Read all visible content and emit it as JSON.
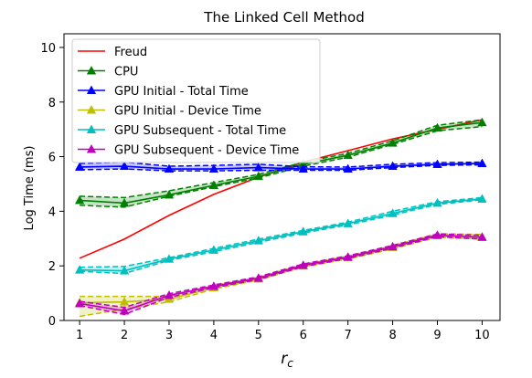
{
  "chart_data": {
    "type": "line",
    "title": "The Linked Cell Method",
    "xlabel_base": "r",
    "xlabel_sub": "c",
    "ylabel": "Log Time (ms)",
    "x": [
      1,
      2,
      3,
      4,
      5,
      6,
      7,
      8,
      9,
      10
    ],
    "xticks": [
      1,
      2,
      3,
      4,
      5,
      6,
      7,
      8,
      9,
      10
    ],
    "yticks": [
      0,
      2,
      4,
      6,
      8,
      10
    ],
    "xlim": [
      0.65,
      10.4
    ],
    "ylim": [
      0,
      10.5
    ],
    "legend_position": "upper-left",
    "series": [
      {
        "name": "Freud",
        "color": "#ff0000",
        "marker": "none",
        "values": [
          2.28,
          2.98,
          3.85,
          4.62,
          5.25,
          5.8,
          6.22,
          6.65,
          7.0,
          7.35
        ]
      },
      {
        "name": "CPU",
        "color": "#008000",
        "marker": "triangle",
        "values": [
          4.4,
          4.3,
          4.6,
          4.95,
          5.28,
          5.72,
          6.05,
          6.5,
          7.05,
          7.25
        ],
        "lower": [
          4.22,
          4.15,
          4.55,
          4.9,
          5.22,
          5.65,
          5.98,
          6.45,
          6.95,
          7.1
        ],
        "upper": [
          4.55,
          4.5,
          4.75,
          5.05,
          5.35,
          5.8,
          6.12,
          6.58,
          7.15,
          7.35
        ]
      },
      {
        "name": "GPU Initial - Total Time",
        "color": "#0000ff",
        "marker": "triangle",
        "values": [
          5.62,
          5.65,
          5.55,
          5.55,
          5.6,
          5.55,
          5.55,
          5.65,
          5.72,
          5.75
        ],
        "lower": [
          5.52,
          5.55,
          5.48,
          5.48,
          5.5,
          5.5,
          5.5,
          5.6,
          5.68,
          5.7
        ],
        "upper": [
          5.75,
          5.8,
          5.65,
          5.68,
          5.72,
          5.63,
          5.62,
          5.72,
          5.78,
          5.8
        ]
      },
      {
        "name": "GPU Initial - Device Time",
        "color": "#bfbf00",
        "marker": "triangle",
        "values": [
          0.65,
          0.68,
          0.78,
          1.2,
          1.52,
          2.0,
          2.3,
          2.68,
          3.12,
          3.05
        ],
        "lower": [
          0.15,
          0.42,
          0.68,
          1.15,
          1.48,
          1.96,
          2.25,
          2.62,
          3.05,
          2.98
        ],
        "upper": [
          0.88,
          0.88,
          0.88,
          1.28,
          1.58,
          2.06,
          2.36,
          2.74,
          3.18,
          3.15
        ]
      },
      {
        "name": "GPU Subsequent - Total Time",
        "color": "#00bfbf",
        "marker": "triangle",
        "values": [
          1.85,
          1.82,
          2.25,
          2.58,
          2.92,
          3.25,
          3.55,
          3.92,
          4.3,
          4.45
        ],
        "lower": [
          1.8,
          1.72,
          2.2,
          2.52,
          2.86,
          3.2,
          3.5,
          3.86,
          4.25,
          4.42
        ],
        "upper": [
          1.95,
          1.98,
          2.3,
          2.64,
          2.98,
          3.3,
          3.6,
          4.0,
          4.35,
          4.5
        ]
      },
      {
        "name": "GPU Subsequent - Device Time",
        "color": "#bf00bf",
        "marker": "triangle",
        "values": [
          0.62,
          0.35,
          0.92,
          1.25,
          1.55,
          2.02,
          2.32,
          2.7,
          3.12,
          3.05
        ],
        "lower": [
          0.55,
          0.22,
          0.85,
          1.2,
          1.5,
          1.97,
          2.27,
          2.65,
          3.07,
          2.98
        ],
        "upper": [
          0.7,
          0.48,
          0.98,
          1.3,
          1.6,
          2.07,
          2.37,
          2.75,
          3.17,
          3.12
        ]
      }
    ]
  }
}
